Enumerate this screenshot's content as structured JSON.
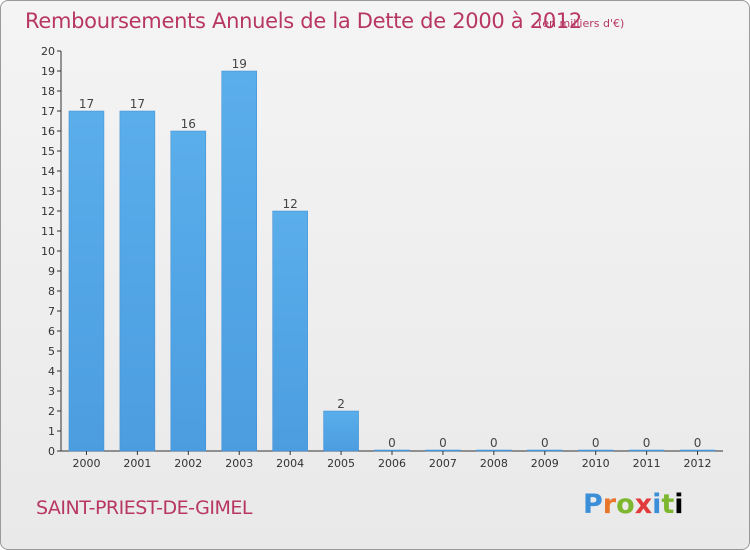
{
  "chart_data": {
    "type": "bar",
    "title": "Remboursements Annuels de la Dette de 2000 à 2012",
    "unit_note": "(en milliers d'€)",
    "categories": [
      "2000",
      "2001",
      "2002",
      "2003",
      "2004",
      "2005",
      "2006",
      "2007",
      "2008",
      "2009",
      "2010",
      "2011",
      "2012"
    ],
    "values": [
      17,
      17,
      16,
      19,
      12,
      2,
      0,
      0,
      0,
      0,
      0,
      0,
      0
    ],
    "ylim": [
      0,
      20
    ],
    "yticks": [
      0,
      1,
      2,
      3,
      4,
      5,
      6,
      7,
      8,
      9,
      10,
      11,
      12,
      13,
      14,
      15,
      16,
      17,
      18,
      19,
      20
    ],
    "xlabel": "",
    "ylabel": "",
    "grid": false,
    "bar_color": "#4b9de0"
  },
  "footer": {
    "commune": "SAINT-PRIEST-DE-GIMEL",
    "logo_letters": [
      "P",
      "r",
      "o",
      "x",
      "i",
      "t",
      "i"
    ]
  }
}
